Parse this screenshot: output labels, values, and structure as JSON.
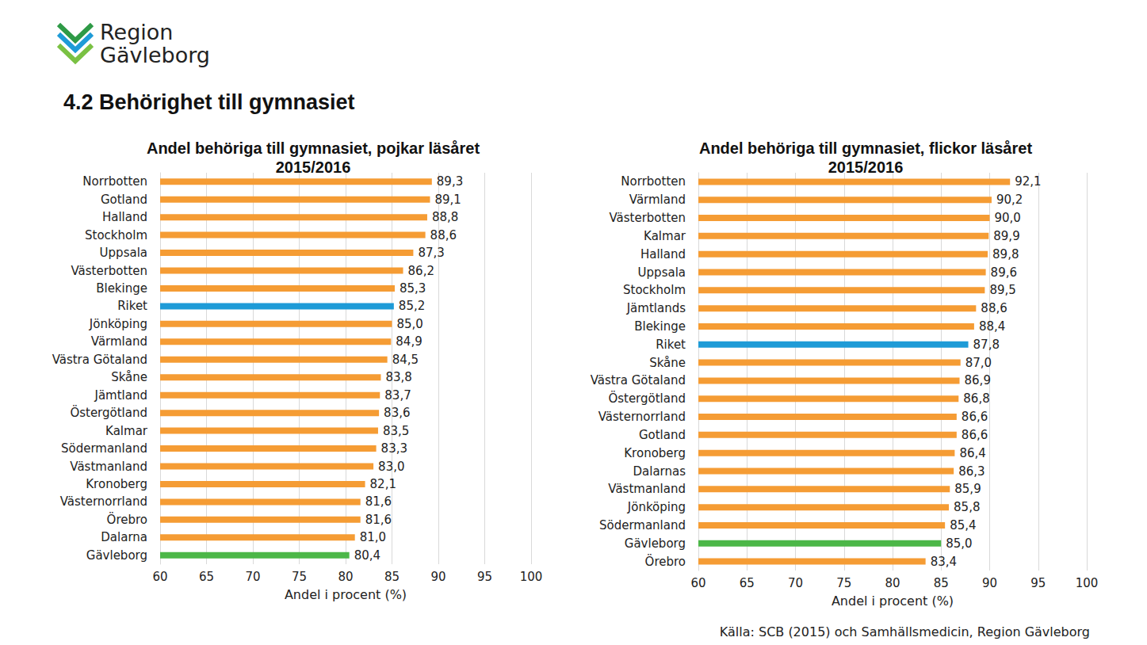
{
  "header": {
    "logo": [
      "Region",
      "Gävleborg"
    ],
    "title": "4.2 Behörighet till gymnasiet"
  },
  "source": "Källa: SCB (2015) och Samhällsmedicin, Region Gävleborg",
  "chart_data": [
    {
      "type": "bar",
      "orientation": "horizontal",
      "title": "Andel behöriga till gymnasiet, pojkar läsåret\n2015/2016",
      "x_label": "Andel i procent (%)",
      "categories": [
        "Norrbotten",
        "Gotland",
        "Halland",
        "Stockholm",
        "Uppsala",
        "Västerbotten",
        "Blekinge",
        "Riket",
        "Jönköping",
        "Värmland",
        "Västra Götaland",
        "Skåne",
        "Jämtland",
        "Östergötland",
        "Kalmar",
        "Södermanland",
        "Västmanland",
        "Kronoberg",
        "Västernorrland",
        "Örebro",
        "Dalarna",
        "Gävleborg"
      ],
      "values": [
        89.3,
        89.1,
        88.8,
        88.6,
        87.3,
        86.2,
        85.3,
        85.2,
        85.0,
        84.9,
        84.5,
        83.8,
        83.7,
        83.6,
        83.5,
        83.3,
        83.0,
        82.1,
        81.6,
        81.6,
        81.0,
        80.4
      ],
      "value_labels": [
        "89,3",
        "89,1",
        "88,8",
        "88,6",
        "87,3",
        "86,2",
        "85,3",
        "85,2",
        "85,0",
        "84,9",
        "84,5",
        "83,8",
        "83,7",
        "83,6",
        "83,5",
        "83,3",
        "83,0",
        "82,1",
        "81,6",
        "81,6",
        "81,0",
        "80,4"
      ],
      "colors": [
        "#f59c34",
        "#f59c34",
        "#f59c34",
        "#f59c34",
        "#f59c34",
        "#f59c34",
        "#f59c34",
        "#1e9bd7",
        "#f59c34",
        "#f59c34",
        "#f59c34",
        "#f59c34",
        "#f59c34",
        "#f59c34",
        "#f59c34",
        "#f59c34",
        "#f59c34",
        "#f59c34",
        "#f59c34",
        "#f59c34",
        "#f59c34",
        "#4cb748"
      ],
      "xlim": [
        60,
        100
      ],
      "xticks": [
        60,
        65,
        70,
        75,
        80,
        85,
        90,
        95,
        100
      ],
      "grid": true,
      "data_labels": true
    },
    {
      "type": "bar",
      "orientation": "horizontal",
      "title": "Andel behöriga till gymnasiet, flickor läsåret\n2015/2016",
      "x_label": "Andel i procent (%)",
      "categories": [
        "Norrbotten",
        "Värmland",
        "Västerbotten",
        "Kalmar",
        "Halland",
        "Uppsala",
        "Stockholm",
        "Jämtlands",
        "Blekinge",
        "Riket",
        "Skåne",
        "Västra Götaland",
        "Östergötland",
        "Västernorrland",
        "Gotland",
        "Kronoberg",
        "Dalarnas",
        "Västmanland",
        "Jönköping",
        "Södermanland",
        "Gävleborg",
        "Örebro"
      ],
      "values": [
        92.1,
        90.2,
        90.0,
        89.9,
        89.8,
        89.6,
        89.5,
        88.6,
        88.4,
        87.8,
        87.0,
        86.9,
        86.8,
        86.6,
        86.6,
        86.4,
        86.3,
        85.9,
        85.8,
        85.4,
        85.0,
        83.4
      ],
      "value_labels": [
        "92,1",
        "90,2",
        "90,0",
        "89,9",
        "89,8",
        "89,6",
        "89,5",
        "88,6",
        "88,4",
        "87,8",
        "87,0",
        "86,9",
        "86,8",
        "86,6",
        "86,6",
        "86,4",
        "86,3",
        "85,9",
        "85,8",
        "85,4",
        "85,0",
        "83,4"
      ],
      "colors": [
        "#f59c34",
        "#f59c34",
        "#f59c34",
        "#f59c34",
        "#f59c34",
        "#f59c34",
        "#f59c34",
        "#f59c34",
        "#f59c34",
        "#1e9bd7",
        "#f59c34",
        "#f59c34",
        "#f59c34",
        "#f59c34",
        "#f59c34",
        "#f59c34",
        "#f59c34",
        "#f59c34",
        "#f59c34",
        "#f59c34",
        "#4cb748",
        "#f59c34"
      ],
      "xlim": [
        60,
        100
      ],
      "xticks": [
        60,
        65,
        70,
        75,
        80,
        85,
        90,
        95,
        100
      ],
      "grid": true,
      "data_labels": true
    }
  ]
}
